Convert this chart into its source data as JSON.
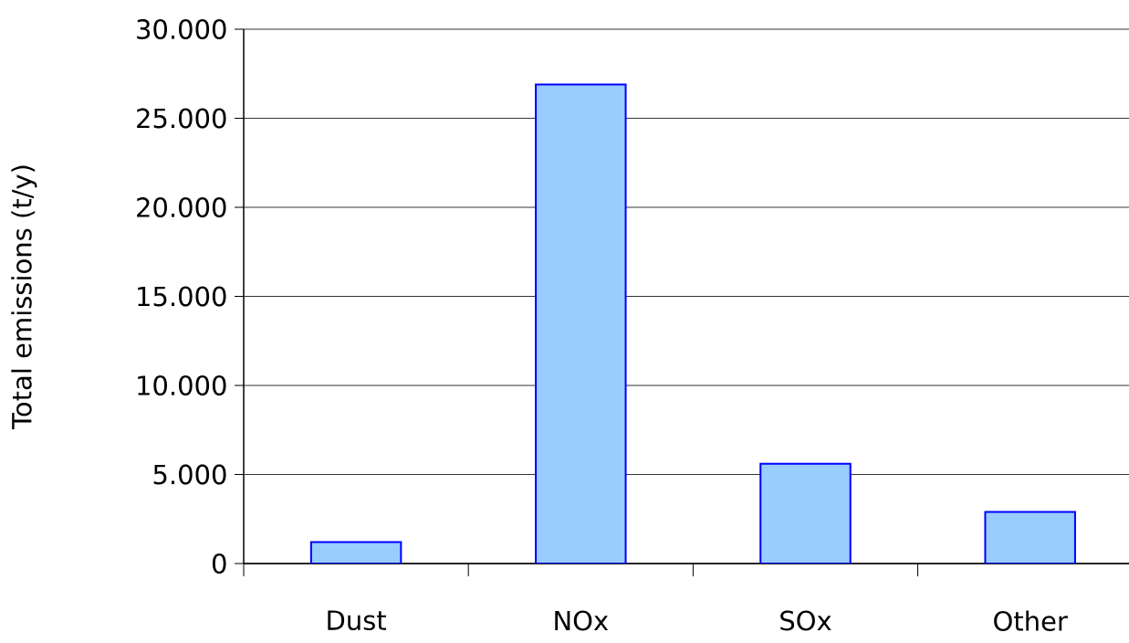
{
  "chart_data": {
    "type": "bar",
    "ylabel": "Total emissions  (t/y)",
    "categories": [
      "Dust",
      "NOx",
      "SOx",
      "Other"
    ],
    "values": [
      1200,
      26900,
      5600,
      2900
    ],
    "color": "#99ccff",
    "ylim": [
      0,
      30000
    ],
    "yticks": [
      {
        "value": 0,
        "label": "0"
      },
      {
        "value": 5000,
        "label": "5.000"
      },
      {
        "value": 10000,
        "label": "10.000"
      },
      {
        "value": 15000,
        "label": "15.000"
      },
      {
        "value": 20000,
        "label": "20.000"
      },
      {
        "value": 25000,
        "label": "25.000"
      },
      {
        "value": 30000,
        "label": "30.000"
      }
    ],
    "grid": "y"
  }
}
